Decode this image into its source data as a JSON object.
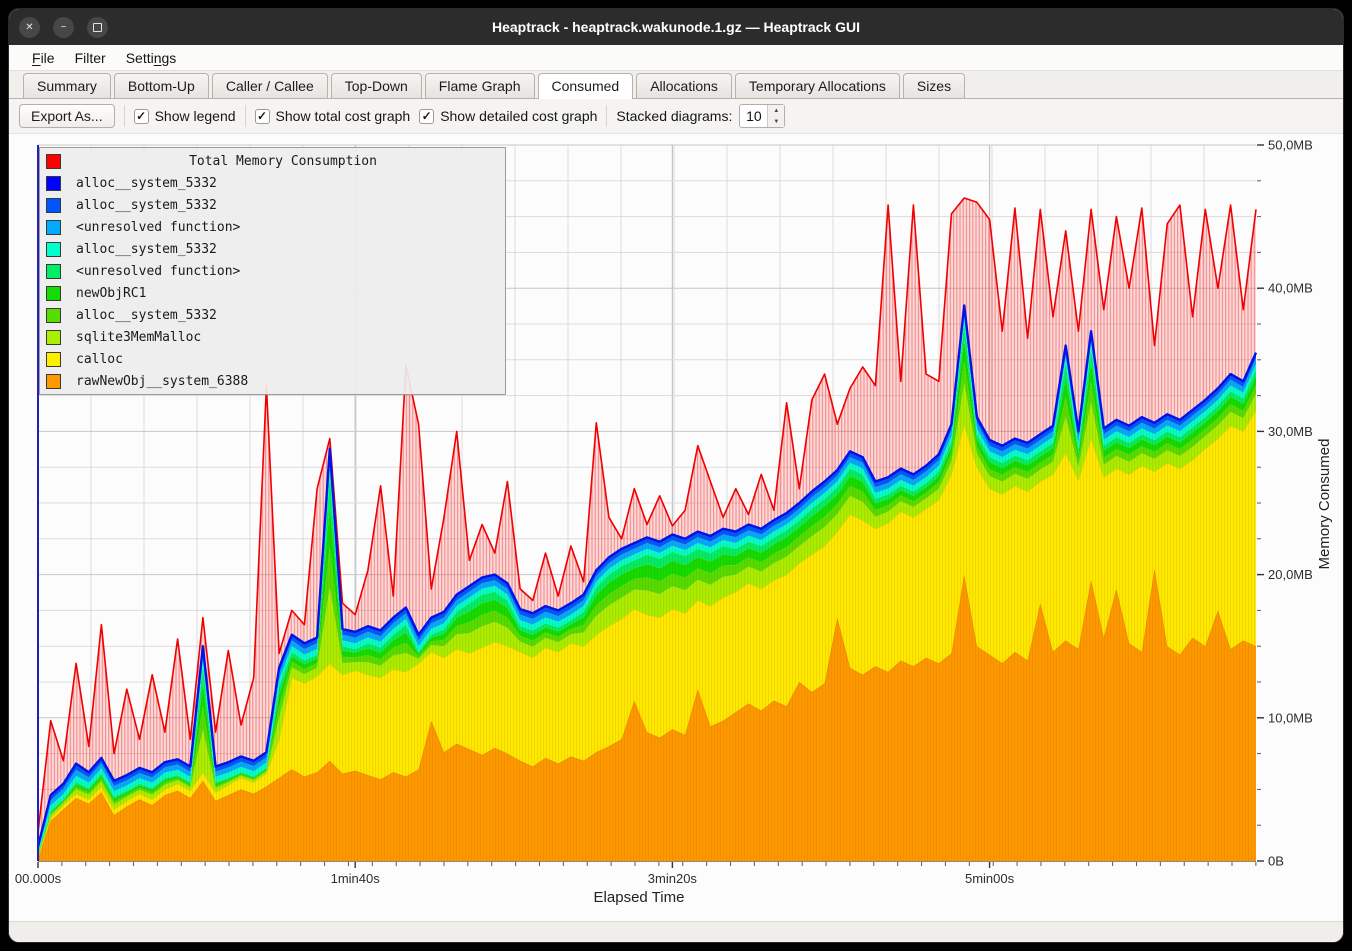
{
  "window": {
    "title": "Heaptrack - heaptrack.wakunode.1.gz — Heaptrack GUI"
  },
  "icons": {
    "close": "✕",
    "minimize": "−",
    "check": "✓",
    "spin_up": "▲",
    "spin_down": "▼"
  },
  "menu": {
    "items": [
      {
        "pre": "",
        "u": "F",
        "post": "ile"
      },
      {
        "pre": "Filter",
        "u": "",
        "post": ""
      },
      {
        "pre": "Setti",
        "u": "n",
        "post": "gs"
      }
    ]
  },
  "tabs": {
    "items": [
      "Summary",
      "Bottom-Up",
      "Caller / Callee",
      "Top-Down",
      "Flame Graph",
      "Consumed",
      "Allocations",
      "Temporary Allocations",
      "Sizes"
    ],
    "active": "Consumed"
  },
  "toolbar": {
    "export_label": "Export As...",
    "checkboxes": [
      {
        "label": "Show legend",
        "checked": true
      },
      {
        "label": "Show total cost graph",
        "checked": true
      },
      {
        "label": "Show detailed cost graph",
        "checked": true
      }
    ],
    "stacked_label": "Stacked diagrams:",
    "stacked_value": "10"
  },
  "chart_data": {
    "type": "area",
    "title": "Total Memory Consumption",
    "xlabel": "Elapsed Time",
    "ylabel": "Memory Consumed",
    "ylim": [
      0,
      50
    ],
    "t_step": 4,
    "t_max": 384,
    "x_ticks": [
      {
        "t": 0,
        "label": "00.000s"
      },
      {
        "t": 100,
        "label": "1min40s"
      },
      {
        "t": 200,
        "label": "3min20s"
      },
      {
        "t": 300,
        "label": "5min00s"
      }
    ],
    "y_ticks": [
      {
        "v": 0,
        "label": "0B"
      },
      {
        "v": 10,
        "label": "10,0MB"
      },
      {
        "v": 20,
        "label": "20,0MB"
      },
      {
        "v": 30,
        "label": "30,0MB"
      },
      {
        "v": 40,
        "label": "40,0MB"
      },
      {
        "v": 50,
        "label": "50,0MB"
      }
    ],
    "legend": [
      {
        "label": "Total Memory Consumption",
        "color": "#ff0000"
      },
      {
        "label": "alloc__system_5332",
        "color": "#0000ff"
      },
      {
        "label": "alloc__system_5332",
        "color": "#0055ff"
      },
      {
        "label": "<unresolved function>",
        "color": "#00aaff"
      },
      {
        "label": "alloc__system_5332",
        "color": "#00ffcc"
      },
      {
        "label": "<unresolved function>",
        "color": "#00ee66"
      },
      {
        "label": "newObjRC1",
        "color": "#11dd00"
      },
      {
        "label": "alloc__system_5332",
        "color": "#55dd00"
      },
      {
        "label": "sqlite3MemMalloc",
        "color": "#aaee00"
      },
      {
        "label": "calloc",
        "color": "#ffee00"
      },
      {
        "label": "rawNewObj__system_6388",
        "color": "#ff9900"
      }
    ],
    "band_colors": {
      "orange": "#ff9900",
      "orange_edge": "#ef8500",
      "yellow": "#ffe900",
      "yellow_edge": "#e8d200",
      "blue_line": "#0013e8",
      "red_line": "#f00000",
      "red_fill": "rgba(255,60,60,0.17)",
      "axis_spine": "#2121b8"
    },
    "sub_bands_green": [
      {
        "color": "#aaee00",
        "frac": 0.4
      },
      {
        "color": "#55dd00",
        "frac": 0.22
      },
      {
        "color": "#11dd00",
        "frac": 0.22
      },
      {
        "color": "#00ee66",
        "frac": 0.16
      }
    ],
    "sub_bands_blue": [
      {
        "color": "#00ffcc",
        "frac": 0.34
      },
      {
        "color": "#00aaff",
        "frac": 0.33
      },
      {
        "color": "#0055ff",
        "frac": 0.33
      }
    ],
    "series": {
      "orange": [
        0.1,
        2.8,
        3.6,
        4.4,
        4.0,
        4.8,
        3.2,
        3.8,
        4.3,
        3.9,
        4.6,
        4.9,
        4.4,
        5.6,
        4.2,
        4.6,
        5.0,
        4.7,
        5.2,
        5.8,
        6.4,
        5.9,
        6.2,
        7.0,
        6.1,
        6.3,
        6.0,
        5.7,
        6.2,
        5.9,
        6.4,
        9.8,
        7.6,
        8.2,
        7.8,
        7.4,
        7.9,
        7.5,
        7.0,
        6.6,
        7.2,
        6.8,
        7.3,
        7.0,
        7.6,
        8.0,
        8.5,
        11.2,
        9.0,
        8.6,
        9.2,
        8.8,
        12.0,
        9.4,
        9.8,
        10.4,
        11.0,
        10.5,
        11.2,
        10.8,
        12.5,
        11.8,
        12.4,
        17.0,
        13.5,
        13.0,
        13.6,
        13.2,
        14.0,
        13.6,
        14.2,
        13.8,
        14.5,
        20.0,
        15.0,
        14.4,
        13.8,
        14.6,
        14.0,
        18.0,
        14.6,
        15.4,
        14.8,
        19.6,
        15.6,
        19.0,
        15.2,
        14.6,
        20.4,
        15.0,
        14.4,
        15.6,
        15.0,
        17.5,
        14.8,
        15.4,
        15.0
      ],
      "yellow_top": [
        0.2,
        3.0,
        3.9,
        4.7,
        4.3,
        5.2,
        3.6,
        4.2,
        4.7,
        4.3,
        5.0,
        5.4,
        4.9,
        6.2,
        4.8,
        5.3,
        5.8,
        5.5,
        6.1,
        8.5,
        12.8,
        12.4,
        12.9,
        13.8,
        13.0,
        13.3,
        13.0,
        12.8,
        13.4,
        13.2,
        13.8,
        14.6,
        14.2,
        14.8,
        14.5,
        14.9,
        15.3,
        15.0,
        14.6,
        14.2,
        14.9,
        14.6,
        15.2,
        15.0,
        15.8,
        16.4,
        16.9,
        17.6,
        17.2,
        17.0,
        17.6,
        17.3,
        18.2,
        17.8,
        18.4,
        18.8,
        19.4,
        19.0,
        19.6,
        20.0,
        20.8,
        21.4,
        22.0,
        23.0,
        24.2,
        23.8,
        23.2,
        23.6,
        24.4,
        24.0,
        24.6,
        25.2,
        27.0,
        30.5,
        27.5,
        26.0,
        25.6,
        26.2,
        25.8,
        26.5,
        27.0,
        28.5,
        26.6,
        29.5,
        26.8,
        27.4,
        27.0,
        27.6,
        27.2,
        27.8,
        27.4,
        28.0,
        28.8,
        29.5,
        30.4,
        30.0,
        31.5
      ],
      "green_top": [
        0.5,
        3.5,
        4.3,
        5.5,
        5.1,
        6.1,
        4.5,
        4.9,
        5.4,
        5.1,
        5.8,
        6.0,
        5.5,
        13.6,
        5.5,
        5.8,
        6.2,
        5.9,
        6.5,
        12.2,
        14.6,
        14.0,
        14.4,
        27.0,
        15.0,
        14.8,
        15.2,
        14.9,
        15.8,
        16.5,
        14.6,
        15.8,
        16.2,
        17.4,
        18.0,
        18.6,
        18.8,
        18.2,
        16.4,
        16.1,
        16.6,
        16.3,
        16.8,
        17.4,
        19.1,
        20.0,
        20.6,
        21.0,
        21.4,
        21.1,
        21.6,
        21.3,
        21.8,
        21.5,
        22.0,
        21.8,
        22.3,
        22.0,
        22.6,
        23.1,
        23.8,
        24.6,
        25.3,
        26.1,
        27.4,
        27.0,
        25.3,
        25.6,
        26.2,
        25.8,
        26.4,
        27.2,
        29.3,
        37.6,
        29.8,
        28.2,
        27.8,
        28.3,
        28.0,
        28.6,
        29.2,
        34.8,
        28.8,
        35.8,
        29.0,
        29.6,
        29.2,
        29.8,
        29.4,
        30.0,
        29.6,
        30.3,
        31.0,
        31.8,
        32.8,
        32.3,
        34.3
      ],
      "blue": [
        1.0,
        4.6,
        5.4,
        6.8,
        6.2,
        7.2,
        5.6,
        6.0,
        6.5,
        6.2,
        6.9,
        7.1,
        6.6,
        15.0,
        6.6,
        6.9,
        7.3,
        7.0,
        7.6,
        13.5,
        15.8,
        15.2,
        15.6,
        28.8,
        16.2,
        16.0,
        16.4,
        16.1,
        17.0,
        17.7,
        15.8,
        17.0,
        17.4,
        18.6,
        19.2,
        19.8,
        20.0,
        19.4,
        17.6,
        17.3,
        17.8,
        17.5,
        18.0,
        18.6,
        20.3,
        21.2,
        21.8,
        22.2,
        22.6,
        22.3,
        22.8,
        22.5,
        23.0,
        22.7,
        23.2,
        23.0,
        23.5,
        23.2,
        23.8,
        24.3,
        25.0,
        25.8,
        26.5,
        27.3,
        28.6,
        28.2,
        26.5,
        26.8,
        27.4,
        27.0,
        27.6,
        28.4,
        30.5,
        38.8,
        31.0,
        29.4,
        29.0,
        29.5,
        29.2,
        29.8,
        30.4,
        36.0,
        30.0,
        37.0,
        30.2,
        30.8,
        30.4,
        31.0,
        30.6,
        31.2,
        30.8,
        31.5,
        32.2,
        33.0,
        34.0,
        33.5,
        35.5
      ],
      "red": [
        2.0,
        9.8,
        7.0,
        13.8,
        8.0,
        16.5,
        7.5,
        12.0,
        8.5,
        13.0,
        9.0,
        15.5,
        8.5,
        17.0,
        9.0,
        14.7,
        9.5,
        12.8,
        33.2,
        14.5,
        17.5,
        16.5,
        26.0,
        29.5,
        18.0,
        17.2,
        20.3,
        26.2,
        18.5,
        34.6,
        30.5,
        19.0,
        24.0,
        30.0,
        21.0,
        23.5,
        21.5,
        26.5,
        19.0,
        18.2,
        21.5,
        18.5,
        22.0,
        19.5,
        30.6,
        24.0,
        22.5,
        26.0,
        23.5,
        25.5,
        23.4,
        24.5,
        29.0,
        26.5,
        24.0,
        26.0,
        24.2,
        27.0,
        24.5,
        32.0,
        26.0,
        32.2,
        34.0,
        30.5,
        33.0,
        34.5,
        33.2,
        45.8,
        33.5,
        45.8,
        34.0,
        33.5,
        45.2,
        46.3,
        46.0,
        44.8,
        37.0,
        45.6,
        36.5,
        45.5,
        38.0,
        44.0,
        37.0,
        45.5,
        38.5,
        45.0,
        40.0,
        45.6,
        36.0,
        44.5,
        45.8,
        38.0,
        45.5,
        40.0,
        45.8,
        38.5,
        45.5
      ]
    }
  }
}
